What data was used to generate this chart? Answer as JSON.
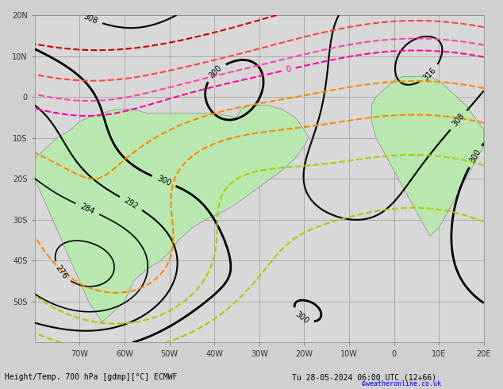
{
  "title_left": "Height/Temp. 700 hPa [gdmp][°C] ECMWF",
  "title_right": "Tu 28-05-2024 06:00 UTC (12+66)",
  "credit": "©weatheronline.co.uk",
  "bg_ocean": "#d8d8d8",
  "bg_land": "#b8e8b0",
  "grid_color": "#999999",
  "xlim": [
    -80,
    20
  ],
  "ylim": [
    -60,
    20
  ],
  "xticks": [
    -70,
    -60,
    -50,
    -40,
    -30,
    -20,
    -10,
    0,
    10,
    20
  ],
  "yticks": [
    -50,
    -40,
    -30,
    -20,
    -10,
    0,
    10,
    20
  ],
  "xlabel_labels": [
    "70W",
    "60W",
    "50W",
    "40W",
    "30W",
    "20W",
    "10W",
    "0",
    "10E",
    "20E"
  ],
  "ylabel_labels": [
    "50S",
    "40S",
    "30S",
    "20S",
    "10S",
    "0",
    "10N",
    "20N"
  ]
}
